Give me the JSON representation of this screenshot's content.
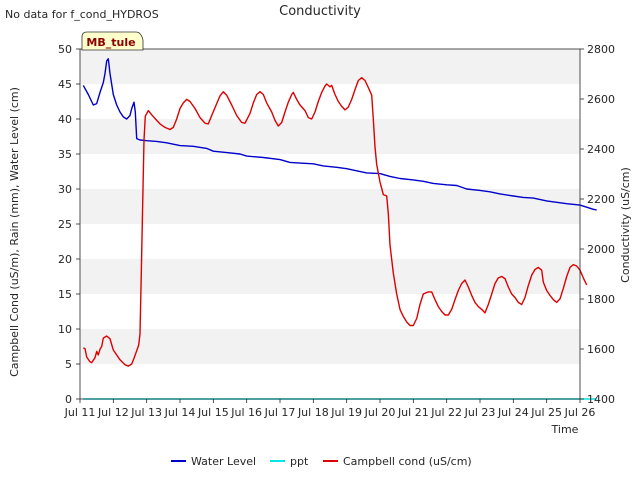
{
  "chart_data": {
    "type": "line",
    "title": "Conductivity",
    "note": "No data for f_cond_HYDROS",
    "site_badge": "MB_tule",
    "xlabel": "Time",
    "ylabel_left": "Campbell Cond (uS/m), Rain (mm), Water Level (cm)",
    "ylabel_right": "Conductivity (uS/cm)",
    "x_ticks": [
      "Jul 11",
      "Jul 12",
      "Jul 13",
      "Jul 14",
      "Jul 15",
      "Jul 16",
      "Jul 17",
      "Jul 18",
      "Jul 19",
      "Jul 20",
      "Jul 21",
      "Jul 22",
      "Jul 23",
      "Jul 24",
      "Jul 25",
      "Jul 26"
    ],
    "xlim_days": [
      11,
      26
    ],
    "ylim_left": [
      0,
      50
    ],
    "yticks_left": [
      0,
      5,
      10,
      15,
      20,
      25,
      30,
      35,
      40,
      45,
      50
    ],
    "ylim_right": [
      1400,
      2800
    ],
    "yticks_right": [
      1400,
      1600,
      1800,
      2000,
      2200,
      2400,
      2600,
      2800
    ],
    "background_bands": "alternating grey bands every 5 units",
    "legend": [
      "Water Level",
      "ppt",
      "Campbell cond (uS/cm)"
    ],
    "colors": {
      "Water Level": "#0000cc",
      "ppt": "#00e5e5",
      "Campbell cond (uS/cm)": "#dd0000",
      "band": "#f2f2f2",
      "badge_bg": "#ffffcc"
    },
    "series": [
      {
        "name": "Water Level",
        "axis": "left",
        "points": [
          [
            11.1,
            44.8
          ],
          [
            11.25,
            43.5
          ],
          [
            11.4,
            42.0
          ],
          [
            11.5,
            42.2
          ],
          [
            11.6,
            43.8
          ],
          [
            11.7,
            45.2
          ],
          [
            11.75,
            46.5
          ],
          [
            11.8,
            48.3
          ],
          [
            11.85,
            48.6
          ],
          [
            11.9,
            46.5
          ],
          [
            12.0,
            43.5
          ],
          [
            12.1,
            42.0
          ],
          [
            12.2,
            41.0
          ],
          [
            12.3,
            40.3
          ],
          [
            12.4,
            40.0
          ],
          [
            12.5,
            40.5
          ],
          [
            12.55,
            41.5
          ],
          [
            12.62,
            42.4
          ],
          [
            12.66,
            41.0
          ],
          [
            12.7,
            37.2
          ],
          [
            12.8,
            37.0
          ],
          [
            13.0,
            36.9
          ],
          [
            13.3,
            36.8
          ],
          [
            13.6,
            36.6
          ],
          [
            14.0,
            36.2
          ],
          [
            14.4,
            36.1
          ],
          [
            14.8,
            35.8
          ],
          [
            15.0,
            35.4
          ],
          [
            15.4,
            35.2
          ],
          [
            15.8,
            35.0
          ],
          [
            16.0,
            34.7
          ],
          [
            16.5,
            34.5
          ],
          [
            17.0,
            34.2
          ],
          [
            17.3,
            33.8
          ],
          [
            17.6,
            33.7
          ],
          [
            18.0,
            33.6
          ],
          [
            18.3,
            33.3
          ],
          [
            18.7,
            33.1
          ],
          [
            19.0,
            32.9
          ],
          [
            19.3,
            32.6
          ],
          [
            19.6,
            32.3
          ],
          [
            20.0,
            32.2
          ],
          [
            20.3,
            31.8
          ],
          [
            20.6,
            31.5
          ],
          [
            21.0,
            31.3
          ],
          [
            21.3,
            31.1
          ],
          [
            21.6,
            30.8
          ],
          [
            22.0,
            30.6
          ],
          [
            22.3,
            30.5
          ],
          [
            22.6,
            30.0
          ],
          [
            23.0,
            29.8
          ],
          [
            23.3,
            29.6
          ],
          [
            23.6,
            29.3
          ],
          [
            24.0,
            29.0
          ],
          [
            24.3,
            28.8
          ],
          [
            24.6,
            28.7
          ],
          [
            25.0,
            28.3
          ],
          [
            25.3,
            28.1
          ],
          [
            25.6,
            27.9
          ],
          [
            26.0,
            27.7
          ],
          [
            26.2,
            27.4
          ],
          [
            26.4,
            27.1
          ],
          [
            26.5,
            27.0
          ]
        ]
      },
      {
        "name": "ppt",
        "axis": "left",
        "points": [
          [
            11.1,
            0.0
          ],
          [
            26.5,
            0.0
          ]
        ]
      },
      {
        "name": "Campbell cond (uS/cm)",
        "axis": "left",
        "points": [
          [
            11.1,
            7.3
          ],
          [
            11.15,
            7.2
          ],
          [
            11.2,
            6.0
          ],
          [
            11.3,
            5.3
          ],
          [
            11.35,
            5.2
          ],
          [
            11.45,
            5.9
          ],
          [
            11.5,
            6.8
          ],
          [
            11.55,
            6.3
          ],
          [
            11.6,
            7.1
          ],
          [
            11.65,
            7.5
          ],
          [
            11.7,
            8.7
          ],
          [
            11.8,
            9.0
          ],
          [
            11.9,
            8.6
          ],
          [
            12.0,
            7.0
          ],
          [
            12.2,
            5.6
          ],
          [
            12.35,
            4.9
          ],
          [
            12.45,
            4.7
          ],
          [
            12.55,
            5.0
          ],
          [
            12.62,
            5.8
          ],
          [
            12.7,
            6.9
          ],
          [
            12.76,
            7.7
          ],
          [
            12.8,
            9.3
          ],
          [
            12.84,
            18.0
          ],
          [
            12.88,
            28.0
          ],
          [
            12.92,
            37.0
          ],
          [
            12.96,
            40.4
          ],
          [
            13.05,
            41.2
          ],
          [
            13.15,
            40.6
          ],
          [
            13.3,
            39.8
          ],
          [
            13.4,
            39.3
          ],
          [
            13.55,
            38.8
          ],
          [
            13.7,
            38.5
          ],
          [
            13.8,
            38.8
          ],
          [
            13.9,
            40.0
          ],
          [
            14.0,
            41.5
          ],
          [
            14.1,
            42.3
          ],
          [
            14.2,
            42.8
          ],
          [
            14.3,
            42.5
          ],
          [
            14.45,
            41.5
          ],
          [
            14.6,
            40.2
          ],
          [
            14.75,
            39.4
          ],
          [
            14.85,
            39.3
          ],
          [
            14.95,
            40.5
          ],
          [
            15.1,
            42.2
          ],
          [
            15.2,
            43.3
          ],
          [
            15.3,
            43.9
          ],
          [
            15.4,
            43.4
          ],
          [
            15.55,
            42.0
          ],
          [
            15.7,
            40.5
          ],
          [
            15.85,
            39.5
          ],
          [
            15.95,
            39.4
          ],
          [
            16.1,
            40.8
          ],
          [
            16.2,
            42.3
          ],
          [
            16.3,
            43.5
          ],
          [
            16.4,
            43.9
          ],
          [
            16.5,
            43.5
          ],
          [
            16.6,
            42.3
          ],
          [
            16.75,
            41.0
          ],
          [
            16.85,
            39.8
          ],
          [
            16.95,
            39.0
          ],
          [
            17.05,
            39.5
          ],
          [
            17.15,
            41.0
          ],
          [
            17.25,
            42.4
          ],
          [
            17.35,
            43.5
          ],
          [
            17.4,
            43.8
          ],
          [
            17.5,
            42.8
          ],
          [
            17.6,
            42.0
          ],
          [
            17.75,
            41.2
          ],
          [
            17.85,
            40.2
          ],
          [
            17.95,
            40.0
          ],
          [
            18.05,
            41.0
          ],
          [
            18.15,
            42.5
          ],
          [
            18.25,
            43.8
          ],
          [
            18.35,
            44.7
          ],
          [
            18.4,
            45.0
          ],
          [
            18.5,
            44.6
          ],
          [
            18.55,
            44.8
          ],
          [
            18.65,
            43.5
          ],
          [
            18.75,
            42.5
          ],
          [
            18.85,
            41.8
          ],
          [
            18.95,
            41.3
          ],
          [
            19.05,
            41.7
          ],
          [
            19.15,
            42.8
          ],
          [
            19.25,
            44.2
          ],
          [
            19.35,
            45.5
          ],
          [
            19.45,
            45.9
          ],
          [
            19.55,
            45.5
          ],
          [
            19.65,
            44.5
          ],
          [
            19.75,
            43.4
          ],
          [
            19.8,
            40.0
          ],
          [
            19.85,
            36.0
          ],
          [
            19.9,
            33.5
          ],
          [
            20.0,
            31.0
          ],
          [
            20.1,
            29.2
          ],
          [
            20.2,
            29.0
          ],
          [
            20.25,
            26.5
          ],
          [
            20.3,
            22.0
          ],
          [
            20.4,
            18.0
          ],
          [
            20.5,
            15.0
          ],
          [
            20.6,
            12.8
          ],
          [
            20.7,
            11.8
          ],
          [
            20.8,
            11.0
          ],
          [
            20.9,
            10.5
          ],
          [
            21.0,
            10.5
          ],
          [
            21.1,
            11.5
          ],
          [
            21.2,
            13.5
          ],
          [
            21.3,
            15.0
          ],
          [
            21.45,
            15.3
          ],
          [
            21.55,
            15.3
          ],
          [
            21.65,
            14.2
          ],
          [
            21.75,
            13.2
          ],
          [
            21.85,
            12.5
          ],
          [
            21.95,
            12.0
          ],
          [
            22.05,
            12.0
          ],
          [
            22.15,
            12.8
          ],
          [
            22.25,
            14.2
          ],
          [
            22.35,
            15.5
          ],
          [
            22.45,
            16.5
          ],
          [
            22.55,
            17.0
          ],
          [
            22.65,
            16.0
          ],
          [
            22.75,
            14.8
          ],
          [
            22.85,
            13.8
          ],
          [
            22.95,
            13.2
          ],
          [
            23.05,
            12.8
          ],
          [
            23.15,
            12.3
          ],
          [
            23.25,
            13.5
          ],
          [
            23.35,
            15.0
          ],
          [
            23.45,
            16.5
          ],
          [
            23.55,
            17.3
          ],
          [
            23.65,
            17.5
          ],
          [
            23.75,
            17.2
          ],
          [
            23.85,
            16.0
          ],
          [
            23.95,
            15.0
          ],
          [
            24.05,
            14.5
          ],
          [
            24.15,
            13.8
          ],
          [
            24.25,
            13.5
          ],
          [
            24.35,
            14.5
          ],
          [
            24.45,
            16.2
          ],
          [
            24.55,
            17.7
          ],
          [
            24.65,
            18.5
          ],
          [
            24.75,
            18.8
          ],
          [
            24.85,
            18.4
          ],
          [
            24.9,
            16.7
          ],
          [
            25.0,
            15.5
          ],
          [
            25.1,
            14.8
          ],
          [
            25.2,
            14.2
          ],
          [
            25.3,
            13.8
          ],
          [
            25.4,
            14.3
          ],
          [
            25.5,
            15.8
          ],
          [
            25.6,
            17.5
          ],
          [
            25.7,
            18.8
          ],
          [
            25.8,
            19.2
          ],
          [
            25.9,
            19.0
          ],
          [
            26.0,
            18.4
          ],
          [
            26.1,
            17.3
          ],
          [
            26.2,
            16.3
          ]
        ]
      }
    ]
  }
}
